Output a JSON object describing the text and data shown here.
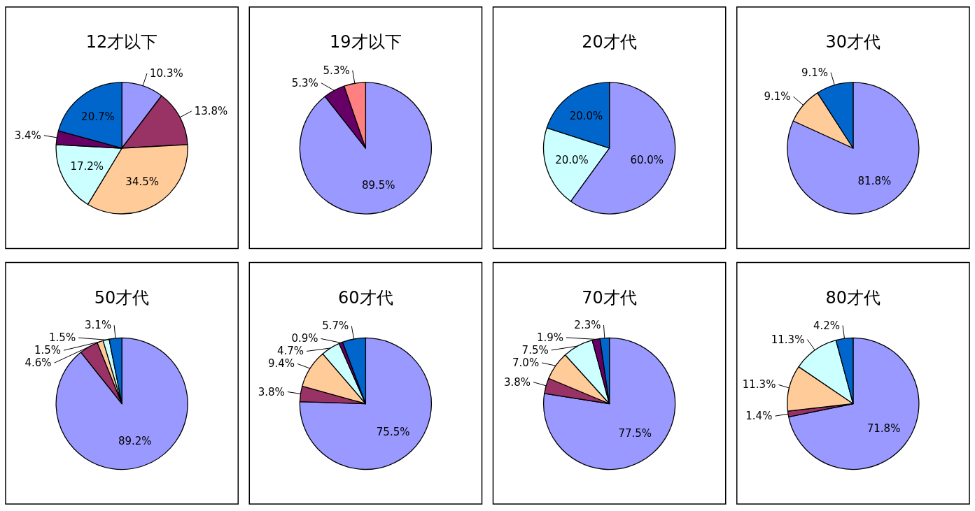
{
  "chart_data": [
    {
      "type": "pie",
      "title": "12才以下",
      "categories": [
        null,
        null,
        null,
        null,
        null,
        null
      ],
      "values": [
        10.3,
        13.8,
        34.5,
        17.2,
        3.4,
        20.7
      ],
      "colors": [
        "#9999ff",
        "#993366",
        "#ffcc99",
        "#ccffff",
        "#660066",
        "#0066cc"
      ],
      "value_labels": [
        "10.3%",
        "13.8%",
        "34.5%",
        "17.2%",
        "3.4%",
        "20.7%"
      ]
    },
    {
      "type": "pie",
      "title": "19才以下",
      "categories": [
        null,
        null,
        null
      ],
      "values": [
        89.5,
        5.3,
        5.3
      ],
      "colors": [
        "#9999ff",
        "#660066",
        "#ff8080"
      ],
      "value_labels": [
        "89.5%",
        "5.3%",
        "5.3%"
      ]
    },
    {
      "type": "pie",
      "title": "20才代",
      "categories": [
        null,
        null,
        null
      ],
      "values": [
        60.0,
        20.0,
        20.0
      ],
      "colors": [
        "#9999ff",
        "#ccffff",
        "#0066cc"
      ],
      "value_labels": [
        "60.0%",
        "20.0%",
        "20.0%"
      ]
    },
    {
      "type": "pie",
      "title": "30才代",
      "categories": [
        null,
        null,
        null
      ],
      "values": [
        81.8,
        9.1,
        9.1
      ],
      "colors": [
        "#9999ff",
        "#ffcc99",
        "#0066cc"
      ],
      "value_labels": [
        "81.8%",
        "9.1%",
        "9.1%"
      ]
    },
    {
      "type": "pie",
      "title": "50才代",
      "categories": [
        null,
        null,
        null,
        null,
        null
      ],
      "values": [
        89.2,
        4.6,
        1.5,
        1.5,
        3.1
      ],
      "colors": [
        "#9999ff",
        "#993366",
        "#ffcc99",
        "#ccffff",
        "#0066cc"
      ],
      "value_labels": [
        "89.2%",
        "4.6%",
        "1.5%",
        "1.5%",
        "3.1%"
      ]
    },
    {
      "type": "pie",
      "title": "60才代",
      "categories": [
        null,
        null,
        null,
        null,
        null,
        null
      ],
      "values": [
        75.5,
        3.8,
        9.4,
        4.7,
        0.9,
        5.7
      ],
      "colors": [
        "#9999ff",
        "#993366",
        "#ffcc99",
        "#ccffff",
        "#660066",
        "#0066cc"
      ],
      "value_labels": [
        "75.5%",
        "3.8%",
        "9.4%",
        "4.7%",
        "0.9%",
        "5.7%"
      ]
    },
    {
      "type": "pie",
      "title": "70才代",
      "categories": [
        null,
        null,
        null,
        null,
        null,
        null
      ],
      "values": [
        77.5,
        3.8,
        7.0,
        7.5,
        1.9,
        2.3
      ],
      "colors": [
        "#9999ff",
        "#993366",
        "#ffcc99",
        "#ccffff",
        "#660066",
        "#0066cc"
      ],
      "value_labels": [
        "77.5%",
        "3.8%",
        "7.0%",
        "7.5%",
        "1.9%",
        "2.3%"
      ]
    },
    {
      "type": "pie",
      "title": "80才代",
      "categories": [
        null,
        null,
        null,
        null,
        null
      ],
      "values": [
        71.8,
        1.4,
        11.3,
        11.3,
        4.2
      ],
      "colors": [
        "#9999ff",
        "#993366",
        "#ffcc99",
        "#ccffff",
        "#0066cc"
      ],
      "value_labels": [
        "71.8%",
        "1.4%",
        "11.3%",
        "11.3%",
        "4.2%"
      ]
    }
  ]
}
